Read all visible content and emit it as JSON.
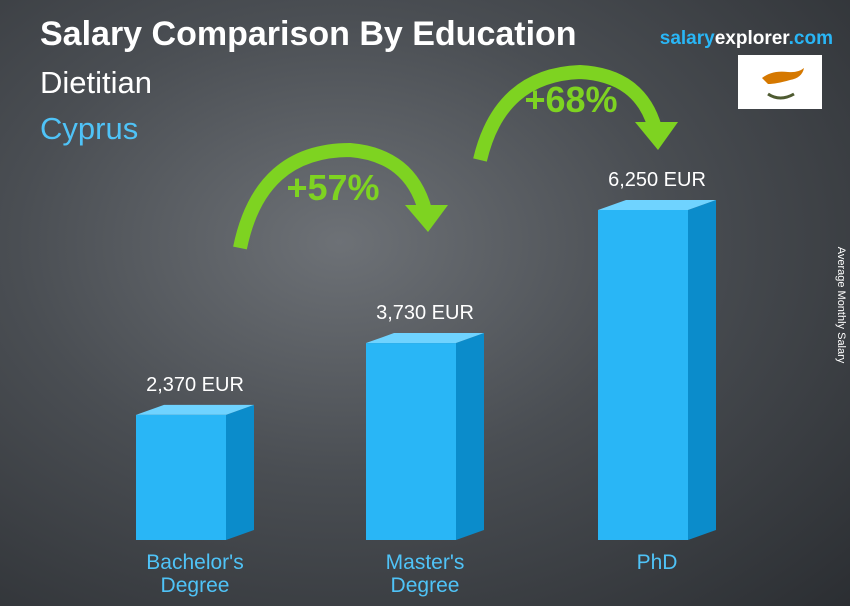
{
  "chart_data": {
    "type": "bar3d",
    "title": "Salary Comparison By Education",
    "subtitle": "Dietitian",
    "location": "Cyprus",
    "brand": [
      "salary",
      "explorer",
      ".com"
    ],
    "y_label": "Average Monthly Salary",
    "categories": [
      "Bachelor's Degree",
      "Master's Degree",
      "PhD"
    ],
    "values": [
      2370,
      3730,
      6250
    ],
    "value_labels": [
      "2,370 EUR",
      "3,730 EUR",
      "6,250 EUR"
    ],
    "annotations": [
      "+57%",
      "+68%"
    ],
    "color": "#29b6f6"
  }
}
